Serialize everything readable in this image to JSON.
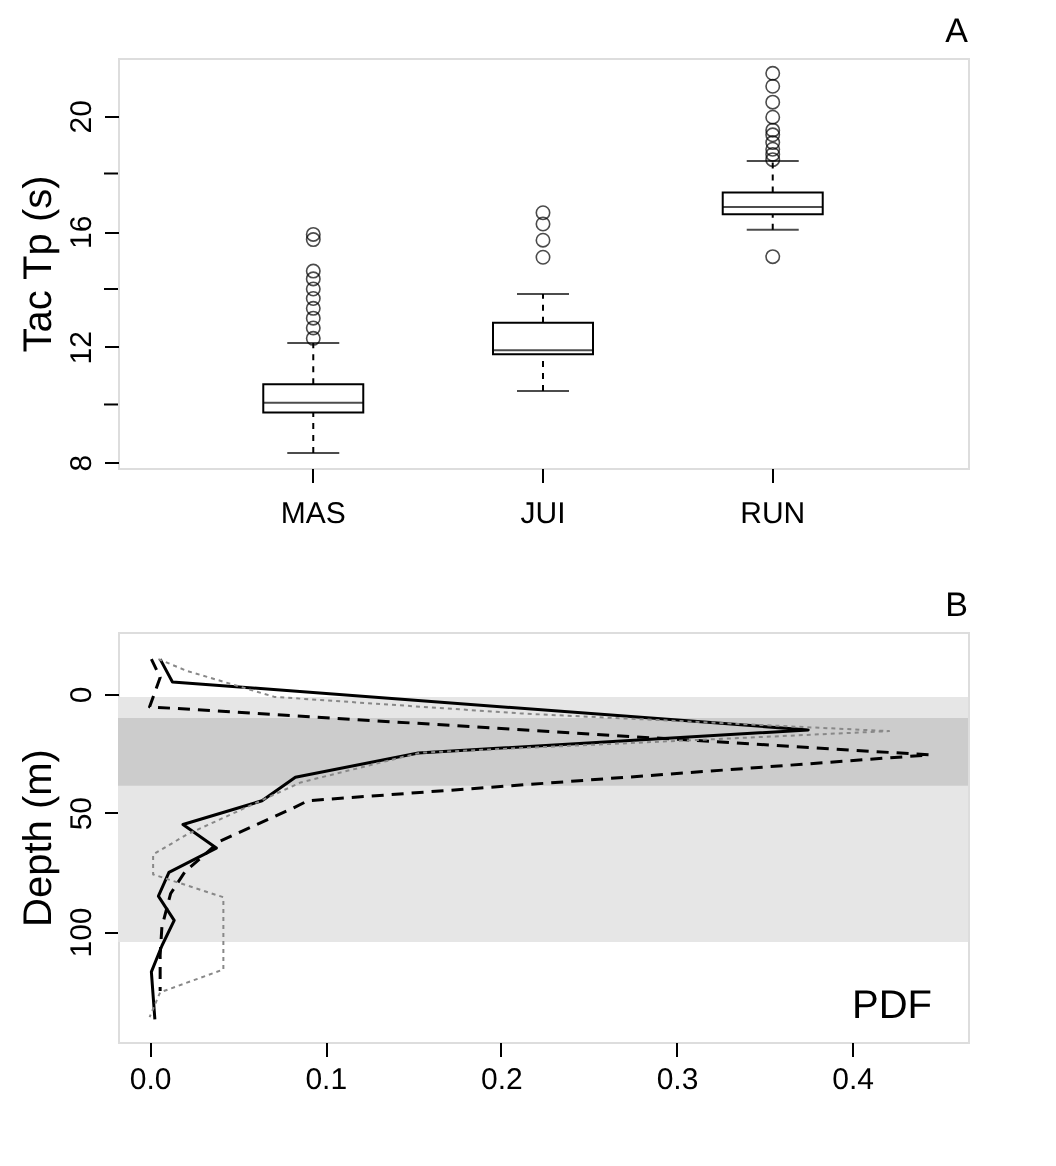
{
  "chart_data": [
    {
      "type": "box",
      "title": "A",
      "ylabel": "Tac Tp (s)",
      "categories": [
        "MAS",
        "JUI",
        "RUN"
      ],
      "boxes": [
        {
          "low": 8.32,
          "q1": 9.72,
          "median": 10.06,
          "q3": 10.7,
          "high": 12.13,
          "outliers": [
            12.29,
            12.65,
            12.99,
            13.33,
            13.67,
            14.0,
            14.35,
            14.62,
            15.71,
            15.89
          ]
        },
        {
          "low": 10.47,
          "q1": 11.74,
          "median": 11.88,
          "q3": 12.83,
          "high": 13.83,
          "outliers": [
            15.1,
            15.69,
            16.25,
            16.64
          ]
        },
        {
          "low": 16.05,
          "q1": 16.59,
          "median": 16.84,
          "q3": 17.34,
          "high": 18.43,
          "outliers": [
            15.12,
            18.48,
            18.66,
            18.84,
            19.07,
            19.34,
            19.5,
            19.95,
            20.47,
            21.02,
            21.47
          ]
        }
      ],
      "ylim": [
        7.8,
        22
      ],
      "yticks": [
        8,
        {
          "value": 10,
          "label": null
        },
        12,
        {
          "value": 14,
          "label": null
        },
        16,
        {
          "value": 18,
          "label": null
        },
        20
      ],
      "grid": false
    },
    {
      "type": "line",
      "orientation": "horizontal",
      "title": "B",
      "ylabel": "Depth (m)",
      "annotations": [
        "PDF"
      ],
      "series": [
        {
          "color": "#000000",
          "line_style": "solid",
          "x": [
            -14.6,
            -5,
            15.2,
            24.9,
            35.1,
            45,
            55,
            64.9,
            75.1,
            85.1,
            95.3,
            106,
            117,
            137
          ],
          "values": [
            0.006,
            0.013,
            0.375,
            0.153,
            0.083,
            0.064,
            0.019,
            0.038,
            0.011,
            0.005,
            0.014,
            0.007,
            0.001,
            0.003
          ]
        },
        {
          "color": "#000000",
          "line_style": "dashed",
          "x": [
            -14.6,
            -6.9,
            5.5,
            25.7,
            45,
            48,
            62,
            75,
            84,
            98,
            110,
            125
          ],
          "values": [
            0.001,
            0.006,
            0.0,
            0.444,
            0.09,
            0.082,
            0.04,
            0.02,
            0.012,
            0.007,
            0.006,
            0.006
          ]
        },
        {
          "color": "#888888",
          "line_style": "dotted",
          "x": [
            -14.6,
            -9.7,
            1.3,
            8.3,
            15.7,
            24.8,
            37.3,
            59.3,
            67.6,
            76,
            85.6,
            116,
            125.6,
            136
          ],
          "values": [
            0.005,
            0.021,
            0.071,
            0.212,
            0.421,
            0.154,
            0.086,
            0.021,
            0.002,
            0.002,
            0.042,
            0.042,
            0.006,
            0.0
          ]
        }
      ],
      "bands": [
        {
          "axis": "y",
          "from": 1.4,
          "to": 104.4,
          "color": "#e6e6e6"
        },
        {
          "axis": "y",
          "from": 10.2,
          "to": 38.7,
          "color": "#cccccc"
        }
      ],
      "xlim": [
        -0.018,
        0.466
      ],
      "xticks": [
        {
          "value": 0,
          "label": "0.0"
        },
        0.1,
        0.2,
        0.3,
        0.4
      ],
      "ylim": [
        146.5,
        -26
      ],
      "yticks": [
        0,
        50,
        100
      ],
      "grid": false
    }
  ]
}
